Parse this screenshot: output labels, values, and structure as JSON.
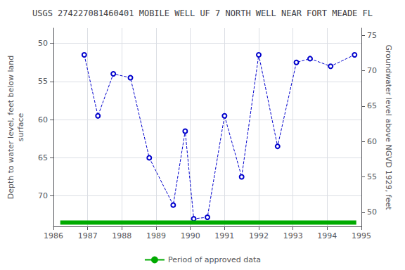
{
  "chart_data": {
    "type": "line",
    "title": "USGS 274227081460401 MOBILE WELL UF 7 NORTH WELL NEAR FORT MEADE FL",
    "ylabel": "Depth to water level, feet below land\nsurface",
    "y2label": "Groundwater level above NGVD 1929, feet",
    "series": [
      {
        "color": "#0000cc",
        "line_style": "dashed",
        "marker": "open_circle",
        "x": [
          1986.9,
          1987.3,
          1987.75,
          1988.25,
          1988.8,
          1989.5,
          1989.85,
          1990.1,
          1990.5,
          1991.0,
          1991.5,
          1992.0,
          1992.55,
          1993.1,
          1993.5,
          1994.1,
          1994.8
        ],
        "values": [
          51.5,
          59.5,
          54.0,
          54.5,
          65.0,
          71.2,
          61.5,
          73.0,
          72.8,
          59.5,
          67.5,
          51.5,
          63.5,
          52.5,
          52.0,
          53.0,
          51.5
        ]
      },
      {
        "name": "Period of approved data",
        "color": "#00aa00",
        "line_style": "solid",
        "marker": "none",
        "x": [
          1986.2,
          1994.85
        ],
        "values": [
          73.5,
          73.5
        ]
      }
    ],
    "xlim": [
      1986,
      1995
    ],
    "xticks": [
      1986,
      1987,
      1988,
      1989,
      1990,
      1991,
      1992,
      1993,
      1994,
      1995
    ],
    "ylim": [
      74,
      48
    ],
    "yticks": [
      50,
      55,
      60,
      65,
      70
    ],
    "y2lim": [
      48,
      76
    ],
    "y2ticks": [
      50,
      55,
      60,
      65,
      70,
      75
    ],
    "grid": true,
    "legend": "bottom"
  }
}
